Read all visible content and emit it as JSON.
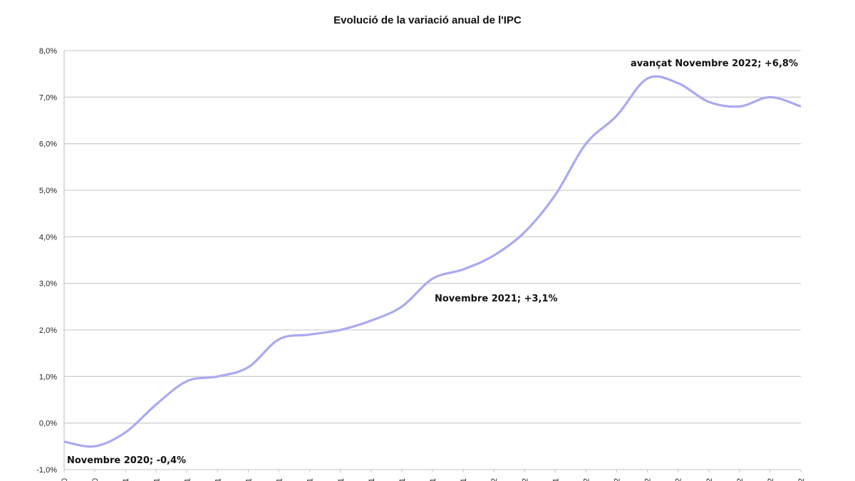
{
  "chart_data": {
    "type": "line",
    "title": "Evolució de la variació anual de l'IPC",
    "xlabel": "",
    "ylabel": "",
    "ylim": [
      -1,
      8
    ],
    "yticks": [
      "-1,0%",
      "0,0%",
      "1,0%",
      "2,0%",
      "3,0%",
      "4,0%",
      "5,0%",
      "6,0%",
      "7,0%",
      "8,0%"
    ],
    "xtick_labels_visible": [
      "0",
      "0",
      "1",
      "1",
      "1",
      "1",
      "1",
      "1",
      "1",
      "1",
      "1",
      "1",
      "1",
      "1",
      "2",
      "2",
      "1",
      "2",
      "2",
      "2",
      "2",
      "2",
      "2",
      "2",
      "2"
    ],
    "grid": true,
    "line_color": "#a9a9f2",
    "series": [
      {
        "values": [
          -0.4,
          -0.5,
          -0.2,
          0.4,
          0.9,
          1.0,
          1.2,
          1.8,
          1.9,
          2.0,
          2.2,
          2.5,
          3.1,
          3.3,
          3.6,
          4.1,
          4.9,
          6.0,
          6.6,
          7.4,
          7.3,
          6.9,
          6.8,
          7.0,
          6.8
        ]
      }
    ],
    "annotations": [
      {
        "text": "Novembre 2020; -0,4%",
        "index": 0
      },
      {
        "text": "Novembre 2021;  +3,1%",
        "index": 12
      },
      {
        "text": "avançat Novembre 2022; +6,8%",
        "index": 24
      }
    ]
  }
}
